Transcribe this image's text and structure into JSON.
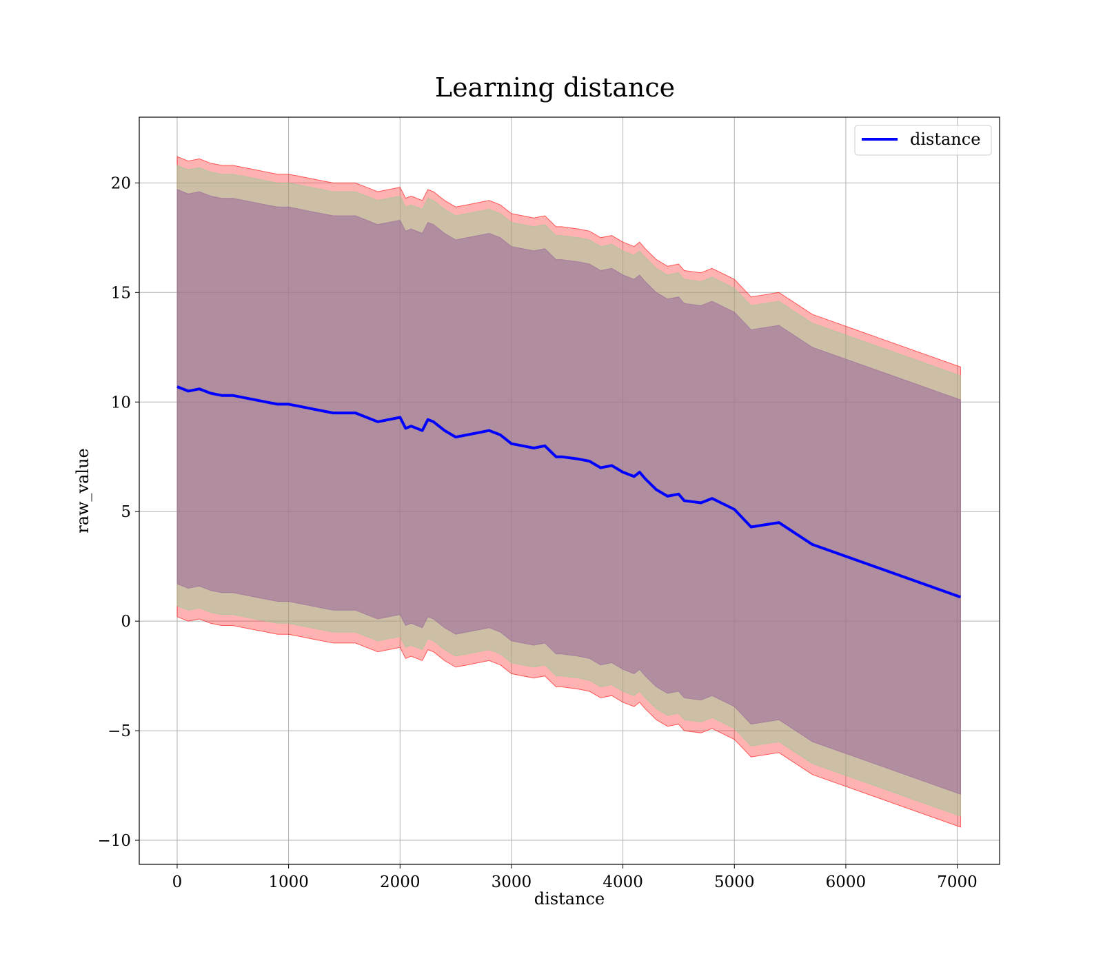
{
  "chart_data": {
    "type": "line",
    "title": "Learning distance",
    "xlabel": "distance",
    "ylabel": "raw_value",
    "xlim": [
      -340,
      7380
    ],
    "ylim": [
      -11.1,
      23.0
    ],
    "xticks": [
      0,
      1000,
      2000,
      3000,
      4000,
      5000,
      6000,
      7000
    ],
    "yticks": [
      -10,
      -5,
      0,
      5,
      10,
      15,
      20
    ],
    "ytick_labels": [
      "−10",
      "−5",
      "0",
      "5",
      "10",
      "15",
      "20"
    ],
    "grid": true,
    "legend": {
      "position": "top-right",
      "entries": [
        "distance"
      ]
    },
    "colors": {
      "line": "#0000ff",
      "band_outer": "#ff0000",
      "band_middle": "#99cc99",
      "band_inner": "#996699",
      "grid": "#b0b0b0"
    },
    "series": [
      {
        "name": "distance",
        "x": [
          0,
          100,
          200,
          300,
          400,
          500,
          600,
          700,
          800,
          900,
          1000,
          1100,
          1200,
          1300,
          1400,
          1500,
          1600,
          1700,
          1800,
          1900,
          2000,
          2050,
          2100,
          2200,
          2250,
          2300,
          2400,
          2500,
          2600,
          2700,
          2800,
          2900,
          3000,
          3100,
          3200,
          3300,
          3400,
          3450,
          3600,
          3700,
          3800,
          3900,
          4000,
          4100,
          4150,
          4200,
          4300,
          4400,
          4500,
          4550,
          4700,
          4800,
          5000,
          5150,
          5400,
          5700,
          7030
        ],
        "y": [
          10.7,
          10.5,
          10.6,
          10.4,
          10.3,
          10.3,
          10.2,
          10.1,
          10.0,
          9.9,
          9.9,
          9.8,
          9.7,
          9.6,
          9.5,
          9.5,
          9.5,
          9.3,
          9.1,
          9.2,
          9.3,
          8.8,
          8.9,
          8.7,
          9.2,
          9.1,
          8.7,
          8.4,
          8.5,
          8.6,
          8.7,
          8.5,
          8.1,
          8.0,
          7.9,
          8.0,
          7.5,
          7.5,
          7.4,
          7.3,
          7.0,
          7.1,
          6.8,
          6.6,
          6.8,
          6.5,
          6.0,
          5.7,
          5.8,
          5.5,
          5.4,
          5.6,
          5.1,
          4.3,
          4.5,
          3.5,
          1.1
        ]
      }
    ],
    "bands": [
      {
        "name": "outer",
        "upper_offset": 10.5,
        "lower_offset": 10.5
      },
      {
        "name": "middle",
        "upper_offset": 10.1,
        "lower_offset": 10.0
      },
      {
        "name": "inner",
        "upper_offset": 9.0,
        "lower_offset": 9.0
      }
    ]
  }
}
